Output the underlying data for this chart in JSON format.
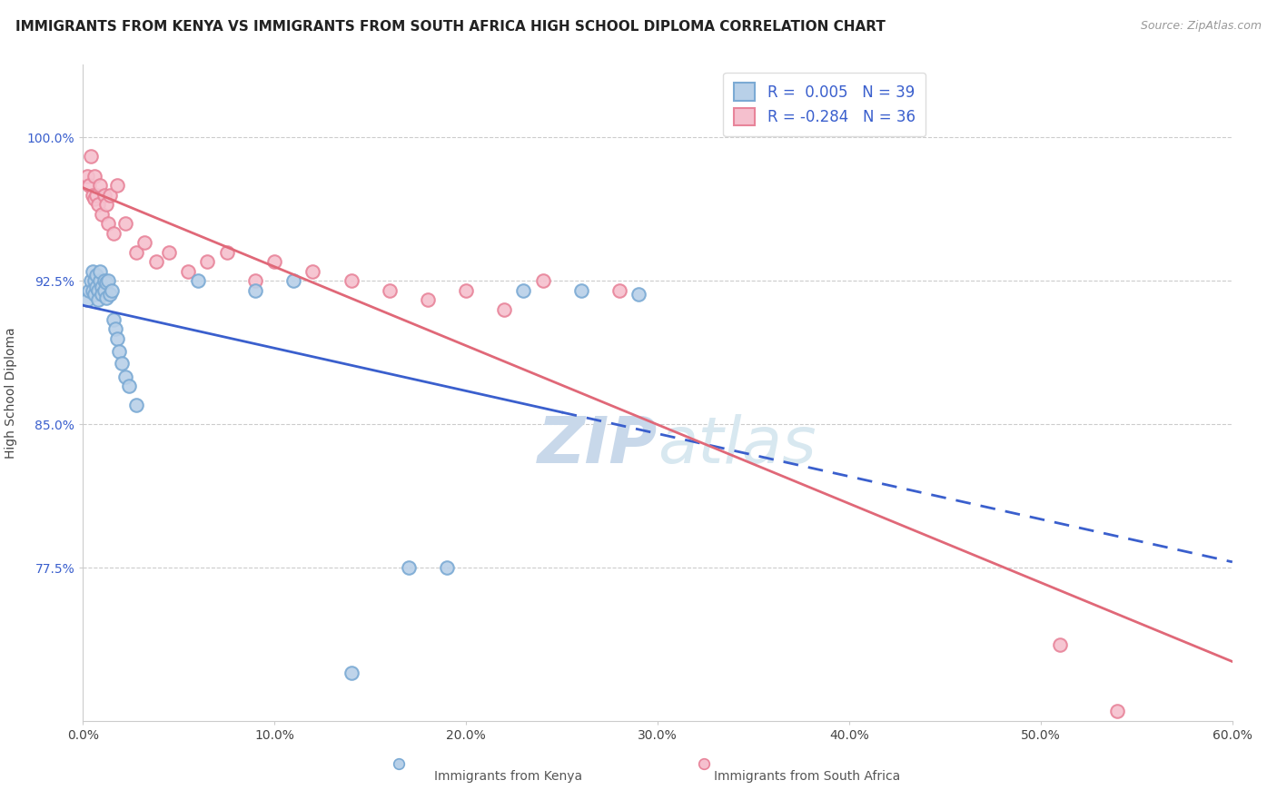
{
  "title": "IMMIGRANTS FROM KENYA VS IMMIGRANTS FROM SOUTH AFRICA HIGH SCHOOL DIPLOMA CORRELATION CHART",
  "source": "Source: ZipAtlas.com",
  "ylabel": "High School Diploma",
  "xlim": [
    0.0,
    0.6
  ],
  "ylim": [
    0.695,
    1.038
  ],
  "xtick_labels": [
    "0.0%",
    "10.0%",
    "20.0%",
    "30.0%",
    "40.0%",
    "50.0%",
    "60.0%"
  ],
  "xtick_vals": [
    0.0,
    0.1,
    0.2,
    0.3,
    0.4,
    0.5,
    0.6
  ],
  "ytick_labels": [
    "77.5%",
    "85.0%",
    "92.5%",
    "100.0%"
  ],
  "ytick_vals": [
    0.775,
    0.85,
    0.925,
    1.0
  ],
  "kenya_color": "#b8d0e8",
  "kenya_edge_color": "#7baad4",
  "sa_color": "#f5c0ce",
  "sa_edge_color": "#e8849a",
  "kenya_R": 0.005,
  "kenya_N": 39,
  "sa_R": -0.284,
  "sa_N": 36,
  "kenya_line_color": "#3a5fcd",
  "sa_line_color": "#e06878",
  "ytick_color": "#3a5fcd",
  "watermark_zip": "ZIP",
  "watermark_atlas": "atlas",
  "watermark_color": "#c8d8ea",
  "kenya_x": [
    0.002,
    0.003,
    0.004,
    0.005,
    0.005,
    0.006,
    0.006,
    0.007,
    0.007,
    0.008,
    0.008,
    0.009,
    0.009,
    0.01,
    0.01,
    0.011,
    0.011,
    0.012,
    0.012,
    0.013,
    0.014,
    0.015,
    0.016,
    0.017,
    0.018,
    0.019,
    0.02,
    0.022,
    0.024,
    0.028,
    0.06,
    0.09,
    0.11,
    0.23,
    0.26,
    0.29,
    0.19,
    0.14,
    0.17
  ],
  "kenya_y": [
    0.915,
    0.92,
    0.925,
    0.93,
    0.92,
    0.925,
    0.918,
    0.922,
    0.928,
    0.92,
    0.915,
    0.925,
    0.93,
    0.922,
    0.918,
    0.925,
    0.92,
    0.924,
    0.916,
    0.925,
    0.918,
    0.92,
    0.905,
    0.9,
    0.895,
    0.888,
    0.882,
    0.875,
    0.87,
    0.86,
    0.925,
    0.92,
    0.925,
    0.92,
    0.92,
    0.918,
    0.775,
    0.72,
    0.775
  ],
  "sa_x": [
    0.002,
    0.003,
    0.004,
    0.005,
    0.006,
    0.006,
    0.007,
    0.008,
    0.009,
    0.01,
    0.011,
    0.012,
    0.013,
    0.014,
    0.016,
    0.018,
    0.022,
    0.028,
    0.032,
    0.038,
    0.045,
    0.055,
    0.065,
    0.075,
    0.09,
    0.1,
    0.12,
    0.14,
    0.16,
    0.18,
    0.2,
    0.22,
    0.24,
    0.28,
    0.51,
    0.54
  ],
  "sa_y": [
    0.98,
    0.975,
    0.99,
    0.97,
    0.98,
    0.968,
    0.97,
    0.965,
    0.975,
    0.96,
    0.97,
    0.965,
    0.955,
    0.97,
    0.95,
    0.975,
    0.955,
    0.94,
    0.945,
    0.935,
    0.94,
    0.93,
    0.935,
    0.94,
    0.925,
    0.935,
    0.93,
    0.925,
    0.92,
    0.915,
    0.92,
    0.91,
    0.925,
    0.92,
    0.735,
    0.7
  ],
  "title_fontsize": 11,
  "source_fontsize": 9,
  "axis_label_fontsize": 10,
  "tick_fontsize": 10,
  "legend_fontsize": 12,
  "marker_size": 110,
  "marker_linewidth": 1.5
}
